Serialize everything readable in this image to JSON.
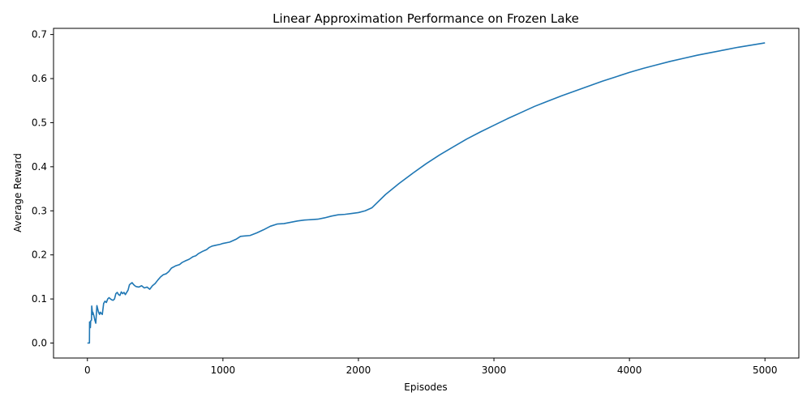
{
  "chart_data": {
    "type": "line",
    "title": "Linear Approximation Performance on Frozen Lake",
    "xlabel": "Episodes",
    "ylabel": "Average Reward",
    "xlim": [
      -250,
      5250
    ],
    "ylim": [
      -0.034,
      0.714
    ],
    "x_ticks": [
      0,
      1000,
      2000,
      3000,
      4000,
      5000
    ],
    "x_tick_labels": [
      "0",
      "1000",
      "2000",
      "3000",
      "4000",
      "5000"
    ],
    "y_ticks": [
      0.0,
      0.1,
      0.2,
      0.3,
      0.4,
      0.5,
      0.6,
      0.7
    ],
    "y_tick_labels": [
      "0.0",
      "0.1",
      "0.2",
      "0.3",
      "0.4",
      "0.5",
      "0.6",
      "0.7"
    ],
    "grid": false,
    "line_color": "#1f77b4",
    "series": [
      {
        "x": [
          0,
          15,
          16,
          22,
          24,
          30,
          32,
          38,
          40,
          48,
          55,
          62,
          70,
          78,
          82,
          90,
          95,
          100,
          110,
          120,
          130,
          140,
          150,
          160,
          170,
          180,
          190,
          200,
          210,
          220,
          230,
          240,
          250,
          260,
          270,
          280,
          290,
          300,
          310,
          320,
          330,
          340,
          350,
          360,
          380,
          400,
          420,
          440,
          460,
          480,
          500,
          520,
          540,
          560,
          580,
          600,
          620,
          650,
          680,
          700,
          720,
          750,
          780,
          800,
          820,
          850,
          880,
          900,
          920,
          950,
          980,
          1000,
          1050,
          1100,
          1130,
          1160,
          1200,
          1250,
          1300,
          1350,
          1400,
          1450,
          1500,
          1550,
          1600,
          1650,
          1700,
          1750,
          1800,
          1850,
          1900,
          1950,
          2000,
          2050,
          2100,
          2200,
          2300,
          2400,
          2500,
          2600,
          2700,
          2800,
          2900,
          3000,
          3100,
          3200,
          3300,
          3400,
          3500,
          3600,
          3700,
          3800,
          3900,
          4000,
          4100,
          4200,
          4300,
          4400,
          4500,
          4600,
          4700,
          4800,
          4900,
          5000
        ],
        "values": [
          0.0,
          0.0,
          0.048,
          0.035,
          0.05,
          0.052,
          0.084,
          0.065,
          0.07,
          0.062,
          0.052,
          0.045,
          0.085,
          0.075,
          0.07,
          0.065,
          0.07,
          0.068,
          0.065,
          0.09,
          0.095,
          0.092,
          0.1,
          0.103,
          0.1,
          0.098,
          0.097,
          0.1,
          0.112,
          0.115,
          0.11,
          0.108,
          0.116,
          0.112,
          0.115,
          0.11,
          0.115,
          0.12,
          0.132,
          0.135,
          0.137,
          0.133,
          0.13,
          0.128,
          0.127,
          0.13,
          0.125,
          0.127,
          0.122,
          0.13,
          0.135,
          0.143,
          0.15,
          0.155,
          0.157,
          0.162,
          0.17,
          0.175,
          0.178,
          0.183,
          0.186,
          0.19,
          0.196,
          0.198,
          0.203,
          0.208,
          0.212,
          0.217,
          0.22,
          0.222,
          0.224,
          0.226,
          0.229,
          0.236,
          0.242,
          0.243,
          0.244,
          0.25,
          0.257,
          0.265,
          0.27,
          0.271,
          0.274,
          0.277,
          0.279,
          0.28,
          0.281,
          0.284,
          0.288,
          0.291,
          0.292,
          0.294,
          0.296,
          0.3,
          0.307,
          0.337,
          0.362,
          0.385,
          0.407,
          0.427,
          0.445,
          0.463,
          0.479,
          0.494,
          0.509,
          0.523,
          0.537,
          0.549,
          0.561,
          0.572,
          0.583,
          0.594,
          0.604,
          0.614,
          0.623,
          0.631,
          0.639,
          0.646,
          0.653,
          0.659,
          0.665,
          0.671,
          0.676,
          0.681
        ]
      }
    ]
  }
}
